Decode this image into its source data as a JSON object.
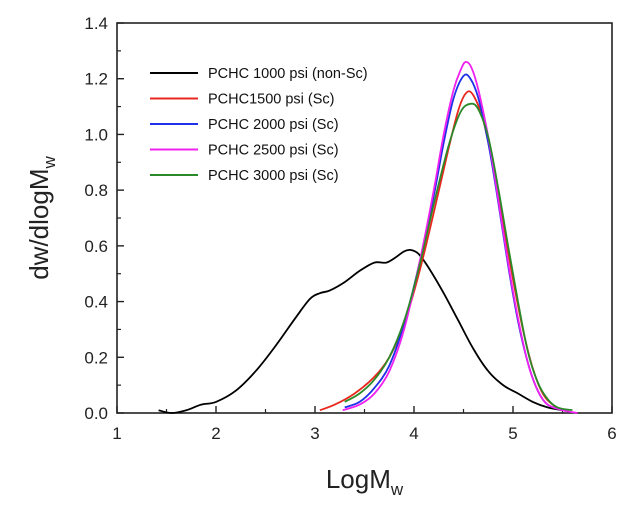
{
  "chart_data": {
    "type": "line",
    "title": "",
    "xlabel": "LogM",
    "xlabel_sub": "w",
    "ylabel": "dw/dlogM",
    "ylabel_sub": "w",
    "xlim": [
      1,
      6
    ],
    "ylim": [
      0,
      1.4
    ],
    "xticks": [
      1,
      2,
      3,
      4,
      5,
      6
    ],
    "xtick_labels": [
      "1",
      "2",
      "3",
      "4",
      "5",
      "6"
    ],
    "yticks": [
      0,
      0.2,
      0.4,
      0.6,
      0.8,
      1.0,
      1.2,
      1.4
    ],
    "ytick_labels": [
      "0.0",
      "0.2",
      "0.4",
      "0.6",
      "0.8",
      "1.0",
      "1.2",
      "1.4"
    ],
    "grid": false,
    "legend_position": "top-left",
    "series": [
      {
        "name": "PCHC 1000 psi (non-Sc)",
        "color": "#000000",
        "points": [
          [
            1.42,
            0.01
          ],
          [
            1.55,
            0.0
          ],
          [
            1.7,
            0.01
          ],
          [
            1.85,
            0.03
          ],
          [
            2.0,
            0.04
          ],
          [
            2.2,
            0.08
          ],
          [
            2.4,
            0.15
          ],
          [
            2.6,
            0.24
          ],
          [
            2.8,
            0.34
          ],
          [
            2.95,
            0.41
          ],
          [
            3.05,
            0.43
          ],
          [
            3.15,
            0.44
          ],
          [
            3.3,
            0.47
          ],
          [
            3.45,
            0.51
          ],
          [
            3.6,
            0.54
          ],
          [
            3.72,
            0.54
          ],
          [
            3.82,
            0.56
          ],
          [
            3.9,
            0.58
          ],
          [
            3.97,
            0.585
          ],
          [
            4.05,
            0.57
          ],
          [
            4.15,
            0.52
          ],
          [
            4.3,
            0.43
          ],
          [
            4.45,
            0.33
          ],
          [
            4.6,
            0.23
          ],
          [
            4.75,
            0.15
          ],
          [
            4.9,
            0.1
          ],
          [
            5.05,
            0.07
          ],
          [
            5.2,
            0.04
          ],
          [
            5.35,
            0.02
          ],
          [
            5.5,
            0.01
          ]
        ]
      },
      {
        "name": "PCHC1500 psi (Sc)",
        "color": "#e8281e",
        "points": [
          [
            3.05,
            0.01
          ],
          [
            3.2,
            0.03
          ],
          [
            3.4,
            0.07
          ],
          [
            3.6,
            0.13
          ],
          [
            3.75,
            0.2
          ],
          [
            3.9,
            0.32
          ],
          [
            4.05,
            0.5
          ],
          [
            4.2,
            0.72
          ],
          [
            4.35,
            0.95
          ],
          [
            4.45,
            1.09
          ],
          [
            4.53,
            1.15
          ],
          [
            4.6,
            1.14
          ],
          [
            4.7,
            1.05
          ],
          [
            4.8,
            0.88
          ],
          [
            4.9,
            0.68
          ],
          [
            5.0,
            0.48
          ],
          [
            5.1,
            0.3
          ],
          [
            5.2,
            0.16
          ],
          [
            5.3,
            0.07
          ],
          [
            5.4,
            0.03
          ],
          [
            5.5,
            0.01
          ]
        ]
      },
      {
        "name": "PCHC 2000 psi (Sc)",
        "color": "#1e30e8",
        "points": [
          [
            3.3,
            0.02
          ],
          [
            3.45,
            0.04
          ],
          [
            3.6,
            0.09
          ],
          [
            3.75,
            0.17
          ],
          [
            3.9,
            0.32
          ],
          [
            4.05,
            0.53
          ],
          [
            4.2,
            0.78
          ],
          [
            4.3,
            0.97
          ],
          [
            4.4,
            1.13
          ],
          [
            4.5,
            1.21
          ],
          [
            4.57,
            1.2
          ],
          [
            4.65,
            1.13
          ],
          [
            4.75,
            0.97
          ],
          [
            4.85,
            0.76
          ],
          [
            4.95,
            0.53
          ],
          [
            5.05,
            0.33
          ],
          [
            5.15,
            0.18
          ],
          [
            5.25,
            0.08
          ],
          [
            5.35,
            0.03
          ],
          [
            5.5,
            0.01
          ]
        ]
      },
      {
        "name": "PCHC 2500 psi (Sc)",
        "color": "#f020f0",
        "points": [
          [
            3.28,
            0.01
          ],
          [
            3.45,
            0.03
          ],
          [
            3.6,
            0.07
          ],
          [
            3.75,
            0.15
          ],
          [
            3.9,
            0.3
          ],
          [
            4.05,
            0.53
          ],
          [
            4.2,
            0.8
          ],
          [
            4.3,
            1.0
          ],
          [
            4.4,
            1.16
          ],
          [
            4.47,
            1.23
          ],
          [
            4.52,
            1.26
          ],
          [
            4.58,
            1.24
          ],
          [
            4.65,
            1.16
          ],
          [
            4.75,
            0.99
          ],
          [
            4.85,
            0.77
          ],
          [
            4.95,
            0.54
          ],
          [
            5.05,
            0.34
          ],
          [
            5.15,
            0.18
          ],
          [
            5.25,
            0.08
          ],
          [
            5.35,
            0.03
          ],
          [
            5.5,
            0.01
          ],
          [
            5.65,
            0.0
          ]
        ]
      },
      {
        "name": "PCHC 3000 psi (Sc)",
        "color": "#2a8a2a",
        "points": [
          [
            3.3,
            0.04
          ],
          [
            3.45,
            0.07
          ],
          [
            3.6,
            0.12
          ],
          [
            3.75,
            0.2
          ],
          [
            3.9,
            0.33
          ],
          [
            4.05,
            0.52
          ],
          [
            4.2,
            0.75
          ],
          [
            4.35,
            0.96
          ],
          [
            4.47,
            1.08
          ],
          [
            4.57,
            1.11
          ],
          [
            4.65,
            1.09
          ],
          [
            4.75,
            0.99
          ],
          [
            4.85,
            0.81
          ],
          [
            4.95,
            0.6
          ],
          [
            5.05,
            0.4
          ],
          [
            5.15,
            0.22
          ],
          [
            5.25,
            0.11
          ],
          [
            5.35,
            0.05
          ],
          [
            5.45,
            0.02
          ],
          [
            5.6,
            0.01
          ]
        ]
      }
    ]
  }
}
